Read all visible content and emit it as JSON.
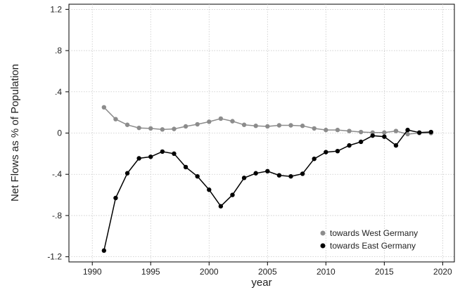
{
  "chart_data": {
    "type": "line",
    "title": "",
    "xlabel": "year",
    "ylabel": "Net Flows as % of Population",
    "xlim": [
      1988,
      2021
    ],
    "ylim": [
      -1.25,
      1.25
    ],
    "x_ticks": [
      1990,
      1995,
      2000,
      2005,
      2010,
      2015,
      2020
    ],
    "x_tick_labels": [
      "1990",
      "1995",
      "2000",
      "2005",
      "2010",
      "2015",
      "2020"
    ],
    "y_ticks": [
      1.2,
      0.8,
      0.4,
      0,
      -0.4,
      -0.8,
      -1.2
    ],
    "y_tick_labels": [
      "1.2",
      ".8",
      ".4",
      "0",
      "-.4",
      "-.8",
      "-1.2"
    ],
    "grid": true,
    "legend_position": "bottom-right",
    "x": [
      1991,
      1992,
      1993,
      1994,
      1995,
      1996,
      1997,
      1998,
      1999,
      2000,
      2001,
      2002,
      2003,
      2004,
      2005,
      2006,
      2007,
      2008,
      2009,
      2010,
      2011,
      2012,
      2013,
      2014,
      2015,
      2016,
      2017,
      2018,
      2019
    ],
    "series": [
      {
        "name": "towards West Germany",
        "color": "#8c8c8c",
        "values": [
          0.25,
          0.135,
          0.08,
          0.05,
          0.045,
          0.035,
          0.04,
          0.065,
          0.085,
          0.11,
          0.14,
          0.115,
          0.08,
          0.07,
          0.065,
          0.075,
          0.075,
          0.07,
          0.045,
          0.03,
          0.03,
          0.02,
          0.01,
          0.005,
          0.005,
          0.02,
          -0.01,
          0.0,
          0.0
        ]
      },
      {
        "name": "towards East Germany",
        "color": "#000000",
        "values": [
          -1.14,
          -0.63,
          -0.39,
          -0.245,
          -0.23,
          -0.18,
          -0.2,
          -0.33,
          -0.42,
          -0.55,
          -0.71,
          -0.6,
          -0.435,
          -0.39,
          -0.37,
          -0.41,
          -0.42,
          -0.395,
          -0.25,
          -0.185,
          -0.175,
          -0.12,
          -0.085,
          -0.025,
          -0.035,
          -0.12,
          0.03,
          0.005,
          0.01
        ]
      }
    ]
  }
}
